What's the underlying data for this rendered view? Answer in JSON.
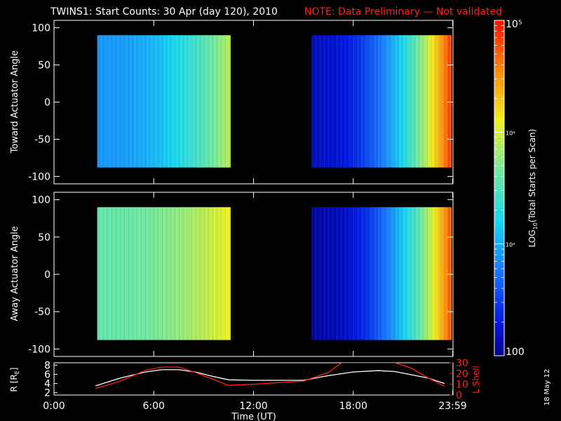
{
  "title": {
    "main": "TWINS1: Start Counts: 30 Apr (day 120), 2010",
    "note": "NOTE: Data Preliminary — Not validated",
    "note_color": "#ff2020"
  },
  "stamp": "18 May 12",
  "colorbar": {
    "label_prefix": "LOG",
    "label_sub": "10",
    "label_suffix": "(Total Starts per Scan)",
    "tick_labels": [
      "100",
      "10³",
      "10⁴",
      "10⁵"
    ],
    "log_range": [
      2,
      5
    ]
  },
  "chart_data": [
    {
      "type": "heatmap",
      "name": "toward-panel",
      "ylabel": "Toward Actuator Angle",
      "ylim": [
        -110,
        110
      ],
      "yticks": [
        -100,
        -50,
        0,
        50,
        100
      ],
      "xlim_hours": [
        0,
        24
      ],
      "data_blocks": [
        {
          "x_start_hour": 2.6,
          "x_end_hour": 10.6,
          "y_range": [
            -88,
            90
          ],
          "log_counts_start": 2.9,
          "log_counts_end": 3.9
        },
        {
          "x_start_hour": 15.5,
          "x_end_hour": 23.9,
          "y_range": [
            -88,
            90
          ],
          "log_counts_start": 2.2,
          "log_counts_end": 4.8
        }
      ]
    },
    {
      "type": "heatmap",
      "name": "away-panel",
      "ylabel": "Away Actuator Angle",
      "ylim": [
        -110,
        110
      ],
      "yticks": [
        -100,
        -50,
        0,
        50,
        100
      ],
      "xlim_hours": [
        0,
        24
      ],
      "data_blocks": [
        {
          "x_start_hour": 2.6,
          "x_end_hour": 10.6,
          "y_range": [
            -88,
            90
          ],
          "log_counts_start": 3.6,
          "log_counts_end": 4.1
        },
        {
          "x_start_hour": 15.5,
          "x_end_hour": 23.9,
          "y_range": [
            -88,
            90
          ],
          "log_counts_start": 2.1,
          "log_counts_end": 4.7
        }
      ]
    },
    {
      "type": "line",
      "name": "ephemeris-panel",
      "xlabel": "Time (UT)",
      "x_tick_labels": [
        "0:00",
        "6:00",
        "12:00",
        "18:00",
        "23:59"
      ],
      "x_tick_hours": [
        0,
        6,
        12,
        18,
        23.98
      ],
      "left_axis": {
        "label": "R [R",
        "label_sub": "E",
        "label_end": "]",
        "ylim": [
          1.5,
          8.5
        ],
        "ticks": [
          2,
          4,
          6,
          8
        ]
      },
      "right_axis": {
        "label": "L Shell",
        "ylim": [
          0,
          30
        ],
        "ticks": [
          0,
          10,
          20,
          30
        ],
        "color": "#ff2020"
      },
      "series": [
        {
          "name": "R",
          "color": "#ffffff",
          "x": [
            2.5,
            4,
            5.5,
            6.5,
            7.5,
            8.5,
            9.5,
            10.5,
            12,
            15,
            16.5,
            18,
            19.5,
            20.5,
            21.5,
            22.5,
            23.5
          ],
          "y": [
            3.5,
            5.2,
            6.5,
            7.0,
            7.0,
            6.5,
            5.6,
            4.8,
            4.7,
            4.7,
            5.7,
            6.5,
            6.8,
            6.6,
            5.9,
            5.2,
            4.0
          ]
        },
        {
          "name": "L Shell",
          "color": "#ff2020",
          "x": [
            2.5,
            4,
            5.5,
            6.5,
            7.5,
            8.5,
            9.5,
            10.5,
            12,
            15,
            16.5,
            17.3,
            20.5,
            21.5,
            22.5,
            23.5
          ],
          "y": [
            6,
            13,
            23,
            26,
            26,
            21,
            15,
            9,
            10,
            13,
            21,
            30,
            30,
            25,
            16,
            8
          ]
        }
      ]
    }
  ]
}
